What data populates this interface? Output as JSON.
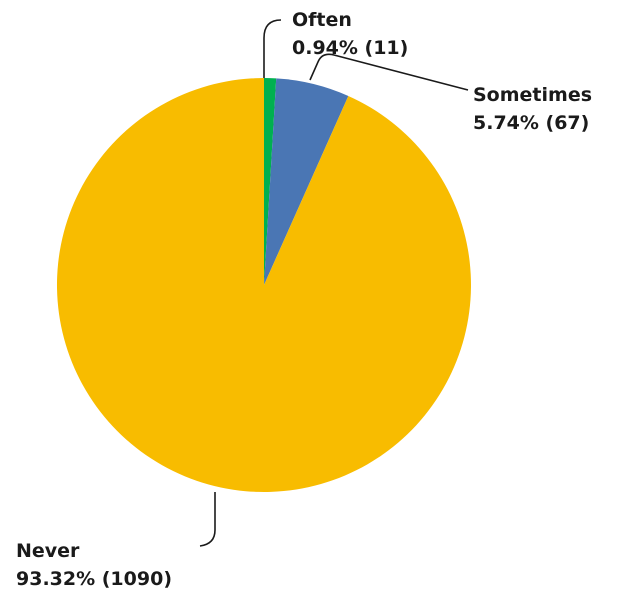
{
  "chart_data": {
    "type": "pie",
    "title": "",
    "slices": [
      {
        "label": "Often",
        "value_label": "0.94% (11)",
        "percent": 0.94,
        "count": 11,
        "color": "#00b050"
      },
      {
        "label": "Sometimes",
        "value_label": "5.74% (67)",
        "percent": 5.74,
        "count": 67,
        "color": "#4a76b4"
      },
      {
        "label": "Never",
        "value_label": "93.32% (1090)",
        "percent": 93.32,
        "count": 1090,
        "color": "#f8bc00"
      }
    ],
    "start_angle": "12 o'clock",
    "direction": "clockwise",
    "legend": "none (data labels with leader lines)"
  }
}
